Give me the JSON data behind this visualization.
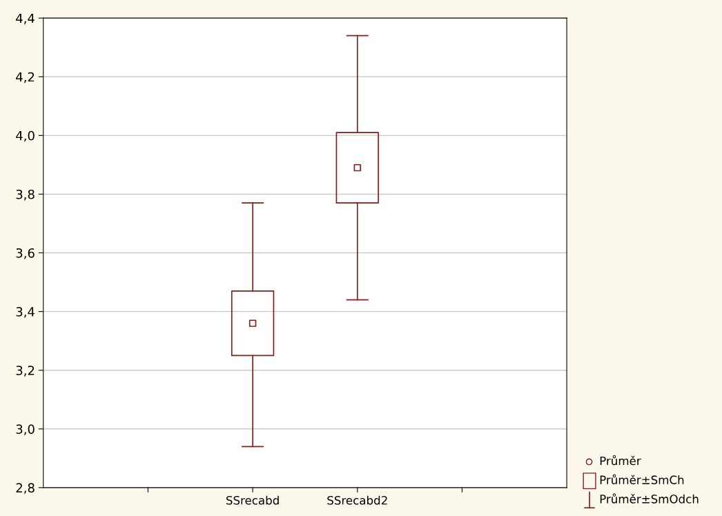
{
  "chart_data": {
    "type": "box",
    "categories": [
      "SSrecabd",
      "SSrecabd2"
    ],
    "color": "#8b1a1a",
    "boxes": [
      {
        "low": 2.94,
        "q1": 3.25,
        "median": 3.36,
        "q3": 3.47,
        "high": 3.77
      },
      {
        "low": 3.44,
        "q1": 3.77,
        "median": 3.89,
        "q3": 4.01,
        "high": 4.34
      }
    ],
    "ylim": [
      2.8,
      4.4
    ],
    "yticks": [
      {
        "value": 2.8,
        "label": "2,8"
      },
      {
        "value": 3.0,
        "label": "3,0"
      },
      {
        "value": 3.2,
        "label": "3,2"
      },
      {
        "value": 3.4,
        "label": "3,4"
      },
      {
        "value": 3.6,
        "label": "3,6"
      },
      {
        "value": 3.8,
        "label": "3,8"
      },
      {
        "value": 4.0,
        "label": "4,0"
      },
      {
        "value": 4.2,
        "label": "4,2"
      },
      {
        "value": 4.4,
        "label": "4,4"
      }
    ],
    "grid": "y",
    "annotations": [
      "Průměr",
      "Průměr±SmCh",
      "Průměr±SmOdch"
    ]
  }
}
